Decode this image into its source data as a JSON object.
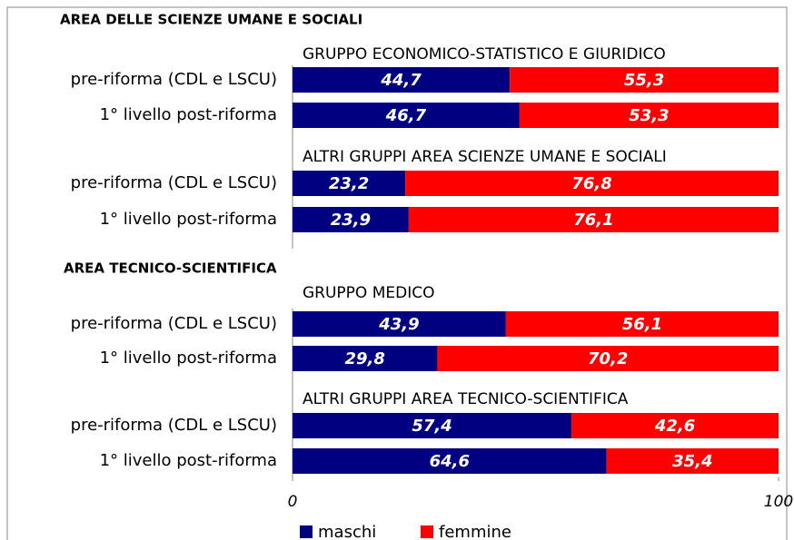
{
  "chart_data": {
    "type": "bar",
    "orientation": "horizontal",
    "stacked": true,
    "section_titles": [
      "AREA DELLE SCIENZE UMANE E SOCIALI",
      "AREA TECNICO-SCIENTIFICA"
    ],
    "group_titles": [
      "GRUPPO ECONOMICO-STATISTICO E GIURIDICO",
      "ALTRI GRUPPI AREA SCIENZE UMANE E SOCIALI",
      "GRUPPO MEDICO",
      "ALTRI GRUPPI AREA TECNICO-SCIENTIFICA"
    ],
    "categories": [
      "pre-riforma (CDL e LSCU)",
      "1° livello post-riforma",
      "pre-riforma (CDL e LSCU)",
      "1° livello post-riforma",
      "pre-riforma (CDL e LSCU)",
      "1° livello post-riforma",
      "pre-riforma (CDL e LSCU)",
      "1° livello post-riforma"
    ],
    "series": [
      {
        "name": "maschi",
        "color": "#000080",
        "values": [
          44.7,
          46.7,
          23.2,
          23.9,
          43.9,
          29.8,
          57.4,
          64.6
        ],
        "value_labels": [
          "44,7",
          "46,7",
          "23,2",
          "23,9",
          "43,9",
          "29,8",
          "57,4",
          "64,6"
        ]
      },
      {
        "name": "femmine",
        "color": "#ff0000",
        "values": [
          55.3,
          53.3,
          76.8,
          76.1,
          56.1,
          70.2,
          42.6,
          35.4
        ],
        "value_labels": [
          "55,3",
          "53,3",
          "76,8",
          "76,1",
          "56,1",
          "70,2",
          "42,6",
          "35,4"
        ]
      }
    ],
    "xlim": [
      0,
      100
    ],
    "xticks": [
      0,
      100
    ]
  }
}
